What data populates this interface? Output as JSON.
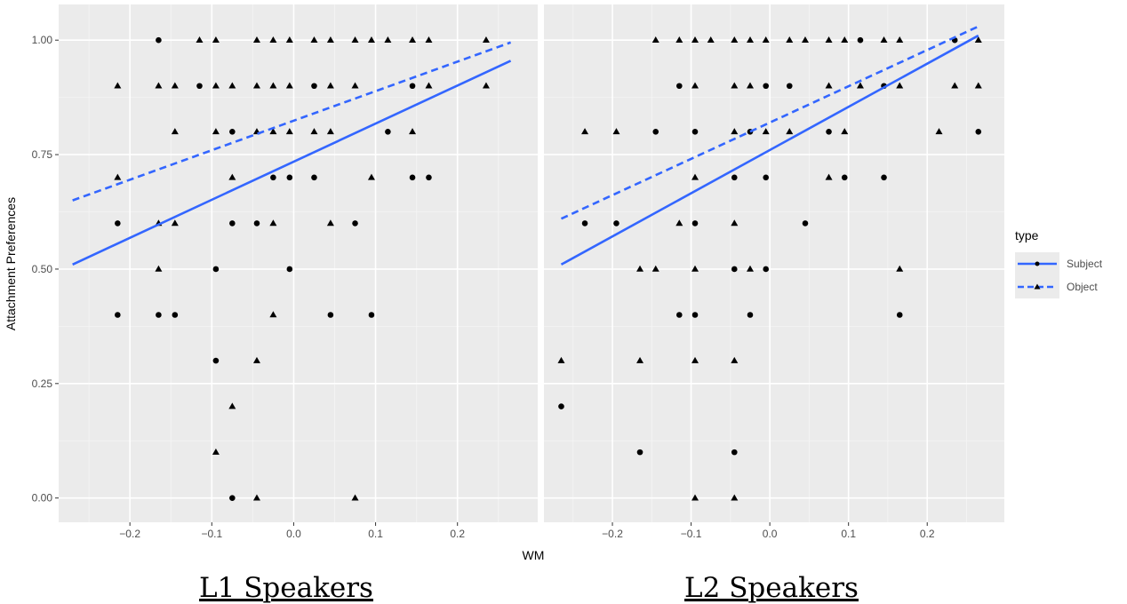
{
  "chart_data": {
    "type": "scatter",
    "xlabel": "WM",
    "ylabel": "Attachment Preferences",
    "xticks": [
      "-0.2",
      "-0.1",
      "0.0",
      "0.1",
      "0.2"
    ],
    "xtick_values": [
      -0.2,
      -0.1,
      0.0,
      0.1,
      0.2
    ],
    "yticks": [
      "0.00",
      "0.25",
      "0.50",
      "0.75",
      "1.00"
    ],
    "ytick_values": [
      0,
      0.25,
      0.5,
      0.75,
      1.0
    ],
    "xlim": [
      -0.287,
      0.298
    ],
    "ylim": [
      -0.053,
      1.078
    ],
    "grid": true,
    "legend": {
      "title": "type",
      "placement": "right",
      "entries": [
        {
          "label": "Subject",
          "shape": "circle",
          "linestyle": "solid"
        },
        {
          "label": "Object",
          "shape": "triangle",
          "linestyle": "dashed"
        }
      ]
    },
    "line_color": "#3366ff",
    "point_color": "#000000",
    "panels": [
      {
        "title": "L1 Speakers",
        "fit_lines": [
          {
            "type": "Subject",
            "x": [
              -0.27,
              0.265
            ],
            "y": [
              0.51,
              0.955
            ]
          },
          {
            "type": "Object",
            "x": [
              -0.27,
              0.265
            ],
            "y": [
              0.65,
              0.995
            ]
          }
        ],
        "points": [
          [
            -0.165,
            1.0,
            "S"
          ],
          [
            -0.115,
            1.0,
            "O"
          ],
          [
            -0.095,
            1.0,
            "O"
          ],
          [
            -0.045,
            1.0,
            "O"
          ],
          [
            -0.025,
            1.0,
            "O"
          ],
          [
            -0.005,
            1.0,
            "O"
          ],
          [
            0.025,
            1.0,
            "O"
          ],
          [
            0.045,
            1.0,
            "O"
          ],
          [
            0.075,
            1.0,
            "O"
          ],
          [
            0.095,
            1.0,
            "O"
          ],
          [
            0.115,
            1.0,
            "O"
          ],
          [
            0.145,
            1.0,
            "O"
          ],
          [
            0.165,
            1.0,
            "O"
          ],
          [
            0.235,
            1.0,
            "O"
          ],
          [
            -0.215,
            0.9,
            "O"
          ],
          [
            -0.165,
            0.9,
            "O"
          ],
          [
            -0.145,
            0.9,
            "O"
          ],
          [
            -0.115,
            0.9,
            "S"
          ],
          [
            -0.095,
            0.9,
            "O"
          ],
          [
            -0.075,
            0.9,
            "O"
          ],
          [
            -0.045,
            0.9,
            "O"
          ],
          [
            -0.025,
            0.9,
            "O"
          ],
          [
            -0.005,
            0.9,
            "O"
          ],
          [
            0.025,
            0.9,
            "S"
          ],
          [
            0.045,
            0.9,
            "O"
          ],
          [
            0.075,
            0.9,
            "O"
          ],
          [
            0.145,
            0.9,
            "S"
          ],
          [
            0.165,
            0.9,
            "O"
          ],
          [
            0.235,
            0.9,
            "O"
          ],
          [
            -0.145,
            0.8,
            "O"
          ],
          [
            -0.095,
            0.8,
            "O"
          ],
          [
            -0.075,
            0.8,
            "S"
          ],
          [
            -0.045,
            0.8,
            "O"
          ],
          [
            -0.025,
            0.8,
            "O"
          ],
          [
            -0.005,
            0.8,
            "O"
          ],
          [
            0.025,
            0.8,
            "O"
          ],
          [
            0.045,
            0.8,
            "O"
          ],
          [
            0.115,
            0.8,
            "S"
          ],
          [
            0.145,
            0.8,
            "O"
          ],
          [
            -0.215,
            0.7,
            "O"
          ],
          [
            -0.075,
            0.7,
            "O"
          ],
          [
            -0.025,
            0.7,
            "S"
          ],
          [
            -0.005,
            0.7,
            "S"
          ],
          [
            0.025,
            0.7,
            "S"
          ],
          [
            0.095,
            0.7,
            "O"
          ],
          [
            0.145,
            0.7,
            "S"
          ],
          [
            0.165,
            0.7,
            "S"
          ],
          [
            -0.215,
            0.6,
            "S"
          ],
          [
            -0.165,
            0.6,
            "O"
          ],
          [
            -0.145,
            0.6,
            "O"
          ],
          [
            -0.075,
            0.6,
            "S"
          ],
          [
            -0.045,
            0.6,
            "S"
          ],
          [
            -0.025,
            0.6,
            "O"
          ],
          [
            0.045,
            0.6,
            "O"
          ],
          [
            0.075,
            0.6,
            "S"
          ],
          [
            -0.165,
            0.5,
            "O"
          ],
          [
            -0.095,
            0.5,
            "S"
          ],
          [
            -0.005,
            0.5,
            "S"
          ],
          [
            -0.215,
            0.4,
            "S"
          ],
          [
            -0.165,
            0.4,
            "S"
          ],
          [
            -0.145,
            0.4,
            "S"
          ],
          [
            -0.025,
            0.4,
            "O"
          ],
          [
            0.045,
            0.4,
            "S"
          ],
          [
            0.095,
            0.4,
            "S"
          ],
          [
            -0.095,
            0.3,
            "S"
          ],
          [
            -0.045,
            0.3,
            "O"
          ],
          [
            -0.075,
            0.2,
            "O"
          ],
          [
            -0.095,
            0.1,
            "O"
          ],
          [
            -0.075,
            0.0,
            "S"
          ],
          [
            -0.045,
            0.0,
            "O"
          ],
          [
            0.075,
            0.0,
            "O"
          ]
        ]
      },
      {
        "title": "L2 Speakers",
        "fit_lines": [
          {
            "type": "Subject",
            "x": [
              -0.265,
              0.265
            ],
            "y": [
              0.51,
              1.01
            ]
          },
          {
            "type": "Object",
            "x": [
              -0.265,
              0.265
            ],
            "y": [
              0.61,
              1.03
            ]
          }
        ],
        "points": [
          [
            -0.145,
            1.0,
            "O"
          ],
          [
            -0.115,
            1.0,
            "O"
          ],
          [
            -0.095,
            1.0,
            "O"
          ],
          [
            -0.075,
            1.0,
            "O"
          ],
          [
            -0.045,
            1.0,
            "O"
          ],
          [
            -0.025,
            1.0,
            "O"
          ],
          [
            -0.005,
            1.0,
            "O"
          ],
          [
            0.025,
            1.0,
            "O"
          ],
          [
            0.045,
            1.0,
            "O"
          ],
          [
            0.075,
            1.0,
            "O"
          ],
          [
            0.095,
            1.0,
            "O"
          ],
          [
            0.115,
            1.0,
            "S"
          ],
          [
            0.145,
            1.0,
            "O"
          ],
          [
            0.165,
            1.0,
            "O"
          ],
          [
            0.235,
            1.0,
            "S"
          ],
          [
            0.265,
            1.0,
            "O"
          ],
          [
            -0.115,
            0.9,
            "S"
          ],
          [
            -0.095,
            0.9,
            "O"
          ],
          [
            -0.045,
            0.9,
            "O"
          ],
          [
            -0.025,
            0.9,
            "O"
          ],
          [
            -0.005,
            0.9,
            "S"
          ],
          [
            0.025,
            0.9,
            "S"
          ],
          [
            0.075,
            0.9,
            "O"
          ],
          [
            0.115,
            0.9,
            "O"
          ],
          [
            0.145,
            0.9,
            "S"
          ],
          [
            0.165,
            0.9,
            "O"
          ],
          [
            0.235,
            0.9,
            "O"
          ],
          [
            0.265,
            0.9,
            "O"
          ],
          [
            -0.235,
            0.8,
            "O"
          ],
          [
            -0.195,
            0.8,
            "O"
          ],
          [
            -0.145,
            0.8,
            "S"
          ],
          [
            -0.095,
            0.8,
            "S"
          ],
          [
            -0.045,
            0.8,
            "O"
          ],
          [
            -0.025,
            0.8,
            "S"
          ],
          [
            -0.005,
            0.8,
            "O"
          ],
          [
            0.025,
            0.8,
            "O"
          ],
          [
            0.075,
            0.8,
            "S"
          ],
          [
            0.095,
            0.8,
            "O"
          ],
          [
            0.215,
            0.8,
            "O"
          ],
          [
            0.265,
            0.8,
            "S"
          ],
          [
            -0.095,
            0.7,
            "O"
          ],
          [
            -0.045,
            0.7,
            "S"
          ],
          [
            -0.005,
            0.7,
            "S"
          ],
          [
            0.075,
            0.7,
            "O"
          ],
          [
            0.095,
            0.7,
            "S"
          ],
          [
            0.145,
            0.7,
            "S"
          ],
          [
            -0.235,
            0.6,
            "S"
          ],
          [
            -0.195,
            0.6,
            "S"
          ],
          [
            -0.115,
            0.6,
            "O"
          ],
          [
            -0.095,
            0.6,
            "S"
          ],
          [
            -0.045,
            0.6,
            "O"
          ],
          [
            0.045,
            0.6,
            "S"
          ],
          [
            -0.165,
            0.5,
            "O"
          ],
          [
            -0.145,
            0.5,
            "O"
          ],
          [
            -0.095,
            0.5,
            "O"
          ],
          [
            -0.045,
            0.5,
            "S"
          ],
          [
            -0.025,
            0.5,
            "O"
          ],
          [
            -0.005,
            0.5,
            "S"
          ],
          [
            0.165,
            0.5,
            "O"
          ],
          [
            -0.115,
            0.4,
            "S"
          ],
          [
            -0.095,
            0.4,
            "S"
          ],
          [
            -0.025,
            0.4,
            "S"
          ],
          [
            0.165,
            0.4,
            "S"
          ],
          [
            -0.265,
            0.3,
            "O"
          ],
          [
            -0.165,
            0.3,
            "O"
          ],
          [
            -0.095,
            0.3,
            "O"
          ],
          [
            -0.045,
            0.3,
            "O"
          ],
          [
            -0.265,
            0.2,
            "S"
          ],
          [
            -0.165,
            0.1,
            "S"
          ],
          [
            -0.045,
            0.1,
            "S"
          ],
          [
            -0.095,
            0.0,
            "O"
          ],
          [
            -0.045,
            0.0,
            "O"
          ]
        ]
      }
    ]
  }
}
